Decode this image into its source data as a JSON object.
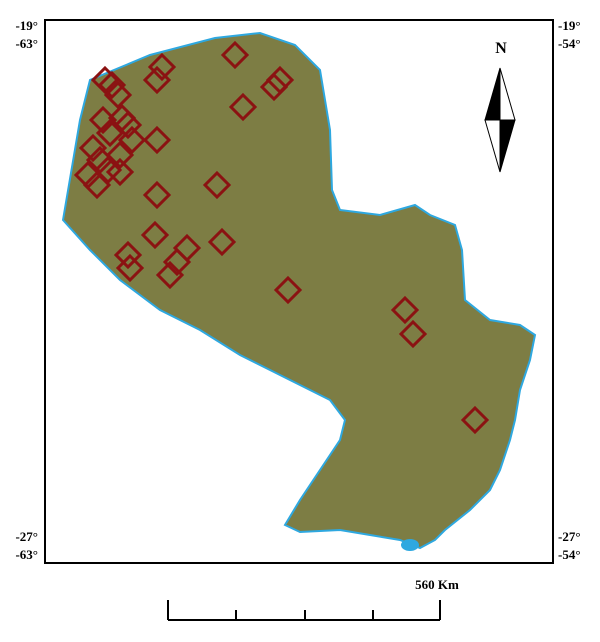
{
  "corners": {
    "top_left": {
      "lat": "-19°",
      "lon": "-63°"
    },
    "top_right": {
      "lat": "-19°",
      "lon": "-54°"
    },
    "bottom_left": {
      "lat": "-27°",
      "lon": "-63°"
    },
    "bottom_right": {
      "lat": "-27°",
      "lon": "-54°"
    }
  },
  "north_arrow": "N",
  "scale_bar": "560 Km"
}
